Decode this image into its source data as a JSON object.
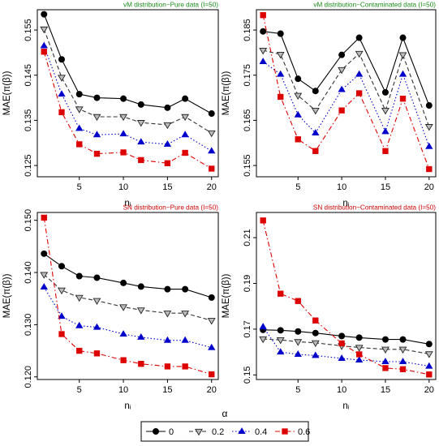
{
  "legend": {
    "title": "α",
    "entries": [
      {
        "label": "0",
        "color": "#000000",
        "marker": "circle-filled",
        "dash": "solid"
      },
      {
        "label": "0.2",
        "color": "#333333",
        "marker": "triangle-down-open",
        "dash": "dashed"
      },
      {
        "label": "0.4",
        "color": "#0000cc",
        "marker": "triangle-up-filled",
        "dash": "dotted"
      },
      {
        "label": "0.6",
        "color": "#dd0000",
        "marker": "square-filled",
        "dash": "dashdot"
      }
    ]
  },
  "chart_data": [
    {
      "type": "line",
      "title": "vM distribution−Pure data (I=50)",
      "title_color": "#1a8a1a",
      "xlabel": "nᵢ",
      "ylabel": "MAE(π(β))",
      "x": [
        1,
        3,
        5,
        7,
        10,
        12,
        15,
        17,
        20
      ],
      "xticks": [
        "5",
        "10",
        "15",
        "20"
      ],
      "yticks": [
        "0.125",
        "0.135",
        "0.145",
        "0.155"
      ],
      "ylim": [
        0.1225,
        0.1595
      ],
      "series": [
        {
          "name": "0",
          "values": [
            0.1585,
            0.1485,
            0.1408,
            0.14,
            0.1398,
            0.1385,
            0.1378,
            0.1398,
            0.1365
          ]
        },
        {
          "name": "0.2",
          "values": [
            0.1552,
            0.1445,
            0.1375,
            0.1358,
            0.1358,
            0.1345,
            0.134,
            0.1358,
            0.1322
          ]
        },
        {
          "name": "0.4",
          "values": [
            0.1515,
            0.1408,
            0.1332,
            0.1318,
            0.132,
            0.1302,
            0.1297,
            0.1318,
            0.1282
          ]
        },
        {
          "name": "0.6",
          "values": [
            0.1502,
            0.1368,
            0.1297,
            0.1276,
            0.1279,
            0.1262,
            0.1255,
            0.1278,
            0.1243
          ]
        }
      ]
    },
    {
      "type": "line",
      "title": "vM distribution−Contaminated data (I=50)",
      "title_color": "#1a8a1a",
      "xlabel": "nᵢ",
      "ylabel": "MAE(π(β))",
      "x": [
        1,
        3,
        5,
        7,
        10,
        12,
        15,
        17,
        20
      ],
      "xticks": [
        "5",
        "10",
        "15",
        "20"
      ],
      "yticks": [
        "0.155",
        "0.165",
        "0.175",
        "0.185"
      ],
      "ylim": [
        0.1525,
        0.1895
      ],
      "series": [
        {
          "name": "0",
          "values": [
            0.1847,
            0.1842,
            0.1742,
            0.1715,
            0.1795,
            0.1833,
            0.1712,
            0.1833,
            0.1683
          ]
        },
        {
          "name": "0.2",
          "values": [
            0.1805,
            0.1796,
            0.1705,
            0.1672,
            0.1762,
            0.1798,
            0.1672,
            0.1795,
            0.1636
          ]
        },
        {
          "name": "0.4",
          "values": [
            0.178,
            0.1752,
            0.1662,
            0.1622,
            0.1718,
            0.1752,
            0.1625,
            0.1752,
            0.1592
          ]
        },
        {
          "name": "0.6",
          "values": [
            0.1883,
            0.1702,
            0.1608,
            0.1582,
            0.1672,
            0.171,
            0.1582,
            0.1698,
            0.1542
          ]
        }
      ]
    },
    {
      "type": "line",
      "title": "SN distribution−Pure data (I=50)",
      "title_color": "#cc0000",
      "xlabel": "nᵢ",
      "ylabel": "MAE(π(β))",
      "x": [
        1,
        3,
        5,
        7,
        10,
        12,
        15,
        17,
        20
      ],
      "xticks": [
        "5",
        "10",
        "15",
        "20"
      ],
      "yticks": [
        "0.120",
        "0.130",
        "0.140",
        "0.150"
      ],
      "ylim": [
        0.1195,
        0.1515
      ],
      "series": [
        {
          "name": "0",
          "values": [
            0.1436,
            0.1412,
            0.1393,
            0.139,
            0.138,
            0.1373,
            0.1368,
            0.1368,
            0.1352
          ]
        },
        {
          "name": "0.2",
          "values": [
            0.1396,
            0.1366,
            0.1352,
            0.1346,
            0.1334,
            0.1328,
            0.1322,
            0.1322,
            0.1308
          ]
        },
        {
          "name": "0.4",
          "values": [
            0.1372,
            0.1316,
            0.1298,
            0.1295,
            0.1282,
            0.1276,
            0.127,
            0.127,
            0.1256
          ]
        },
        {
          "name": "0.6",
          "values": [
            0.1505,
            0.1282,
            0.125,
            0.1245,
            0.1232,
            0.1225,
            0.122,
            0.122,
            0.1205
          ]
        }
      ]
    },
    {
      "type": "line",
      "title": "SN distribution−Contaminated data (I=50)",
      "title_color": "#cc0000",
      "xlabel": "nᵢ",
      "ylabel": "MAE(π(β))",
      "x": [
        1,
        3,
        5,
        7,
        10,
        12,
        15,
        17,
        20
      ],
      "xticks": [
        "5",
        "10",
        "15",
        "20"
      ],
      "yticks": [
        "0.15",
        "0.17",
        "0.19",
        "0.21"
      ],
      "ylim": [
        0.148,
        0.221
      ],
      "series": [
        {
          "name": "0",
          "values": [
            0.1697,
            0.1695,
            0.169,
            0.1683,
            0.167,
            0.1663,
            0.1655,
            0.1655,
            0.1635
          ]
        },
        {
          "name": "0.2",
          "values": [
            0.1657,
            0.1653,
            0.1645,
            0.164,
            0.1627,
            0.162,
            0.1612,
            0.1612,
            0.1592
          ]
        },
        {
          "name": "0.4",
          "values": [
            0.171,
            0.16,
            0.159,
            0.1585,
            0.1572,
            0.1565,
            0.1558,
            0.1558,
            0.1538
          ]
        },
        {
          "name": "0.6",
          "values": [
            0.2175,
            0.1855,
            0.1823,
            0.1738,
            0.1638,
            0.159,
            0.153,
            0.1525,
            0.1502
          ]
        }
      ]
    }
  ]
}
